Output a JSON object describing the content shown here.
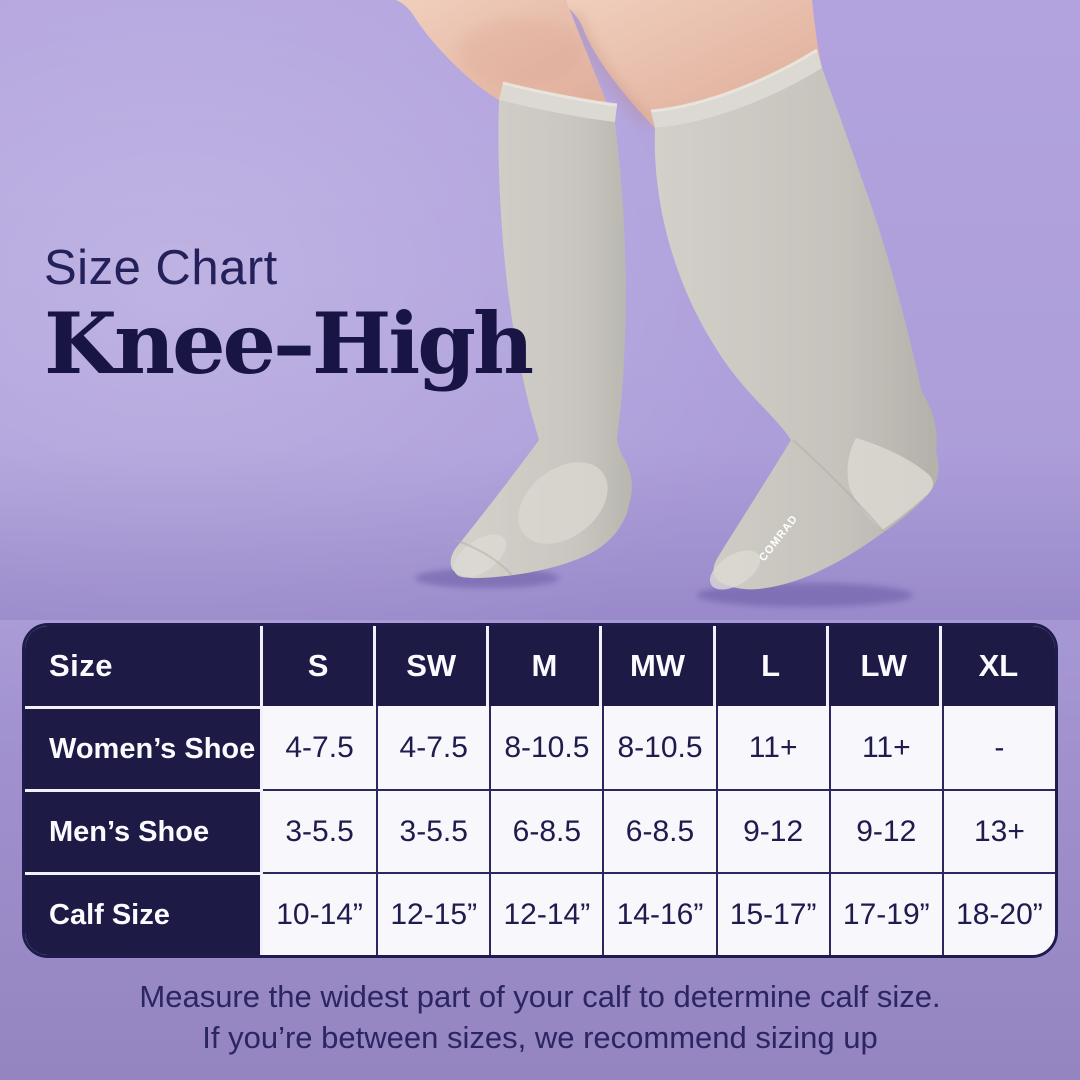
{
  "header": {
    "eyebrow": "Size Chart",
    "title": "Knee–High"
  },
  "photo": {
    "sock_brand_text": "COMRAD"
  },
  "table": {
    "corner_label": "Size",
    "columns": [
      "S",
      "SW",
      "M",
      "MW",
      "L",
      "LW",
      "XL"
    ],
    "rows": [
      {
        "label": "Women’s Shoe",
        "values": [
          "4-7.5",
          "4-7.5",
          "8-10.5",
          "8-10.5",
          "11+",
          "11+",
          "-"
        ]
      },
      {
        "label": "Men’s Shoe",
        "values": [
          "3-5.5",
          "3-5.5",
          "6-8.5",
          "6-8.5",
          "9-12",
          "9-12",
          "13+"
        ]
      },
      {
        "label": "Calf Size",
        "values": [
          "10-14”",
          "12-15”",
          "12-14”",
          "14-16”",
          "15-17”",
          "17-19”",
          "18-20”"
        ]
      }
    ]
  },
  "footer": {
    "line1": "Measure the widest part of your calf to determine calf size.",
    "line2": "If you’re between sizes, we recommend sizing up"
  },
  "colors": {
    "background_purple": "#ab9cd8",
    "navy": "#1d1a46",
    "cell_background": "#f8f7fc",
    "sock_grey": "#cbc9c2",
    "text_navy": "#1e1b4d"
  },
  "chart_data": {
    "type": "table",
    "title": "Size Chart — Knee–High",
    "columns": [
      "Size",
      "S",
      "SW",
      "M",
      "MW",
      "L",
      "LW",
      "XL"
    ],
    "rows": [
      [
        "Women’s Shoe",
        "4-7.5",
        "4-7.5",
        "8-10.5",
        "8-10.5",
        "11+",
        "11+",
        "-"
      ],
      [
        "Men’s Shoe",
        "3-5.5",
        "3-5.5",
        "6-8.5",
        "6-8.5",
        "9-12",
        "9-12",
        "13+"
      ],
      [
        "Calf Size",
        "10-14”",
        "12-15”",
        "12-14”",
        "14-16”",
        "15-17”",
        "17-19”",
        "18-20”"
      ]
    ],
    "notes": "Measure the widest part of your calf to determine calf size. If you’re between sizes, we recommend sizing up"
  }
}
